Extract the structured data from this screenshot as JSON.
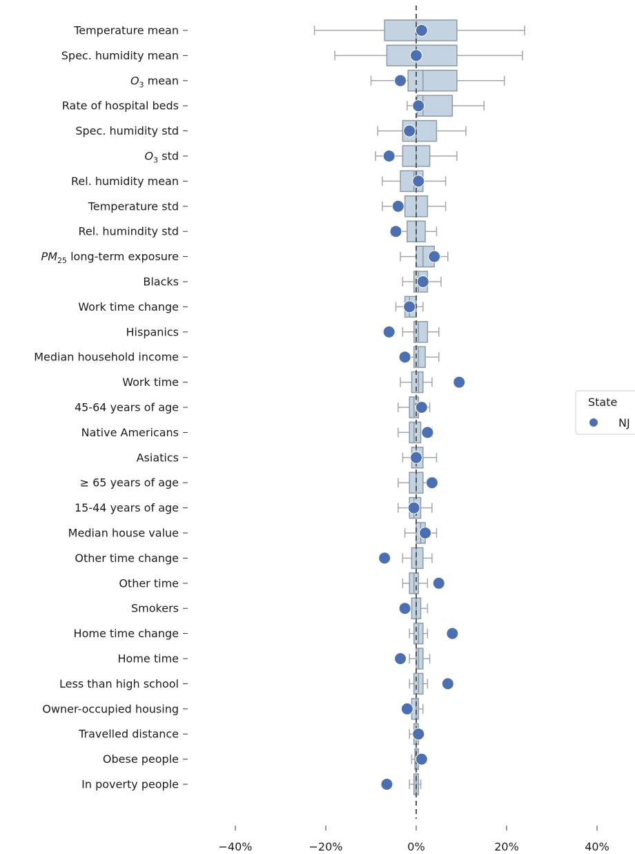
{
  "chart_data": {
    "type": "box",
    "xlim": [
      -40,
      40
    ],
    "x_ticks": [
      -40,
      -20,
      0,
      20,
      40
    ],
    "x_tick_labels": [
      "−40%",
      "−20%",
      "0%",
      "20%",
      "40%"
    ],
    "reference_line_x": 0,
    "grid": false,
    "legend_position": "right",
    "legend": {
      "title": "State",
      "entries": [
        {
          "label": "NJ",
          "color": "#4c6fb1"
        }
      ]
    },
    "colors": {
      "box_fill": "#c3d3e1",
      "box_edge": "#8c9aa6",
      "whisker": "#a0a6ab",
      "point": "#4c6fb1",
      "refline": "#555555"
    },
    "rows": [
      {
        "label": "Temperature mean",
        "whisker_low": -22.5,
        "q1": -7,
        "median": 0,
        "q3": 9,
        "whisker_high": 24,
        "nj": 1.2
      },
      {
        "label": "Spec. humidity mean",
        "whisker_low": -18,
        "q1": -6.5,
        "median": 0,
        "q3": 9,
        "whisker_high": 23.5,
        "nj": 0
      },
      {
        "label": "O3 mean",
        "label_prefix": "O",
        "label_sub": "3",
        "label_suffix": " mean",
        "whisker_low": -10,
        "q1": -1.8,
        "median": 1.5,
        "q3": 9,
        "whisker_high": 19.5,
        "nj": -3.5
      },
      {
        "label": "Rate of hospital beds",
        "whisker_low": -2,
        "q1": 0.2,
        "median": 1.5,
        "q3": 8,
        "whisker_high": 15,
        "nj": 0.5
      },
      {
        "label": "Spec. humidity std",
        "whisker_low": -8.5,
        "q1": -3,
        "median": 0,
        "q3": 4.5,
        "whisker_high": 11,
        "nj": -1.5
      },
      {
        "label": "O3 std",
        "label_prefix": "O",
        "label_sub": "3",
        "label_suffix": " std",
        "whisker_low": -9,
        "q1": -3,
        "median": 0,
        "q3": 3,
        "whisker_high": 9,
        "nj": -6
      },
      {
        "label": "Rel. humidity mean",
        "whisker_low": -7.5,
        "q1": -3.5,
        "median": -0.5,
        "q3": 1.5,
        "whisker_high": 6.5,
        "nj": 0.5
      },
      {
        "label": "Temperature std",
        "whisker_low": -7.5,
        "q1": -2.5,
        "median": 0,
        "q3": 2.5,
        "whisker_high": 6.5,
        "nj": -4
      },
      {
        "label": "Rel. humindity std",
        "whisker_low": -5.5,
        "q1": -2,
        "median": 0,
        "q3": 2,
        "whisker_high": 4.5,
        "nj": -4.5
      },
      {
        "label": "PM25 long-term exposure",
        "label_prefix": "PM",
        "label_sub": "25",
        "label_suffix": " long-term exposure",
        "whisker_low": -3.5,
        "q1": 0,
        "median": 1.5,
        "q3": 4,
        "whisker_high": 7,
        "nj": 4
      },
      {
        "label": "Blacks",
        "whisker_low": -3,
        "q1": -0.5,
        "median": 0.5,
        "q3": 2.5,
        "whisker_high": 5.5,
        "nj": 1.5
      },
      {
        "label": "Work time change",
        "whisker_low": -4.5,
        "q1": -2.5,
        "median": -1.5,
        "q3": 0,
        "whisker_high": 1.5,
        "nj": -1.5
      },
      {
        "label": "Hispanics",
        "whisker_low": -3,
        "q1": -0.5,
        "median": 0.5,
        "q3": 2.5,
        "whisker_high": 5,
        "nj": -6
      },
      {
        "label": "Median household income",
        "whisker_low": -3,
        "q1": -0.5,
        "median": 0.5,
        "q3": 2,
        "whisker_high": 5,
        "nj": -2.5
      },
      {
        "label": "Work time",
        "whisker_low": -3.5,
        "q1": -1,
        "median": 0.5,
        "q3": 1.5,
        "whisker_high": 3.5,
        "nj": 9.5
      },
      {
        "label": "45-64 years of age",
        "whisker_low": -4,
        "q1": -1.5,
        "median": -0.5,
        "q3": 0.5,
        "whisker_high": 3,
        "nj": 1.2
      },
      {
        "label": "Native Americans",
        "whisker_low": -4,
        "q1": -1.5,
        "median": -0.5,
        "q3": 1,
        "whisker_high": 3.5,
        "nj": 2.5
      },
      {
        "label": "Asiatics",
        "whisker_low": -3,
        "q1": -1,
        "median": 0,
        "q3": 1.5,
        "whisker_high": 4.5,
        "nj": 0
      },
      {
        "label": "≥ 65 years of age",
        "whisker_low": -4,
        "q1": -1.5,
        "median": 0,
        "q3": 1.5,
        "whisker_high": 4,
        "nj": 3.5
      },
      {
        "label": "15-44 years of age",
        "whisker_low": -4,
        "q1": -1.5,
        "median": -0.5,
        "q3": 1,
        "whisker_high": 3.5,
        "nj": -0.5
      },
      {
        "label": "Median house value",
        "whisker_low": -2.5,
        "q1": 0,
        "median": 1,
        "q3": 2,
        "whisker_high": 4.5,
        "nj": 2
      },
      {
        "label": "Other time change",
        "whisker_low": -3,
        "q1": -1,
        "median": 0,
        "q3": 1.5,
        "whisker_high": 3.5,
        "nj": -7
      },
      {
        "label": "Other time",
        "whisker_low": -3,
        "q1": -1.5,
        "median": -0.5,
        "q3": 0.5,
        "whisker_high": 2.5,
        "nj": 5
      },
      {
        "label": "Smokers",
        "whisker_low": -2.5,
        "q1": -1,
        "median": 0,
        "q3": 1,
        "whisker_high": 2.5,
        "nj": -2.5
      },
      {
        "label": "Home time change",
        "whisker_low": -1.5,
        "q1": -0.5,
        "median": 0.5,
        "q3": 1.5,
        "whisker_high": 2.5,
        "nj": 8
      },
      {
        "label": "Home time",
        "whisker_low": -1.5,
        "q1": 0,
        "median": 0.5,
        "q3": 1.5,
        "whisker_high": 3,
        "nj": -3.5
      },
      {
        "label": "Less than high school",
        "whisker_low": -1.5,
        "q1": -0.5,
        "median": 0.5,
        "q3": 1.5,
        "whisker_high": 2.5,
        "nj": 7
      },
      {
        "label": "Owner-occupied housing",
        "whisker_low": -2.5,
        "q1": -1,
        "median": 0,
        "q3": 0.5,
        "whisker_high": 1.5,
        "nj": -2
      },
      {
        "label": "Travelled distance",
        "whisker_low": -1.5,
        "q1": -0.5,
        "median": 0,
        "q3": 0.5,
        "whisker_high": 1,
        "nj": 0.5
      },
      {
        "label": "Obese people",
        "whisker_low": -1,
        "q1": -0.3,
        "median": 0,
        "q3": 0.5,
        "whisker_high": 1,
        "nj": 1.2
      },
      {
        "label": "In poverty people",
        "whisker_low": -1.5,
        "q1": -0.5,
        "median": 0,
        "q3": 0.5,
        "whisker_high": 1,
        "nj": -6.5
      }
    ]
  }
}
